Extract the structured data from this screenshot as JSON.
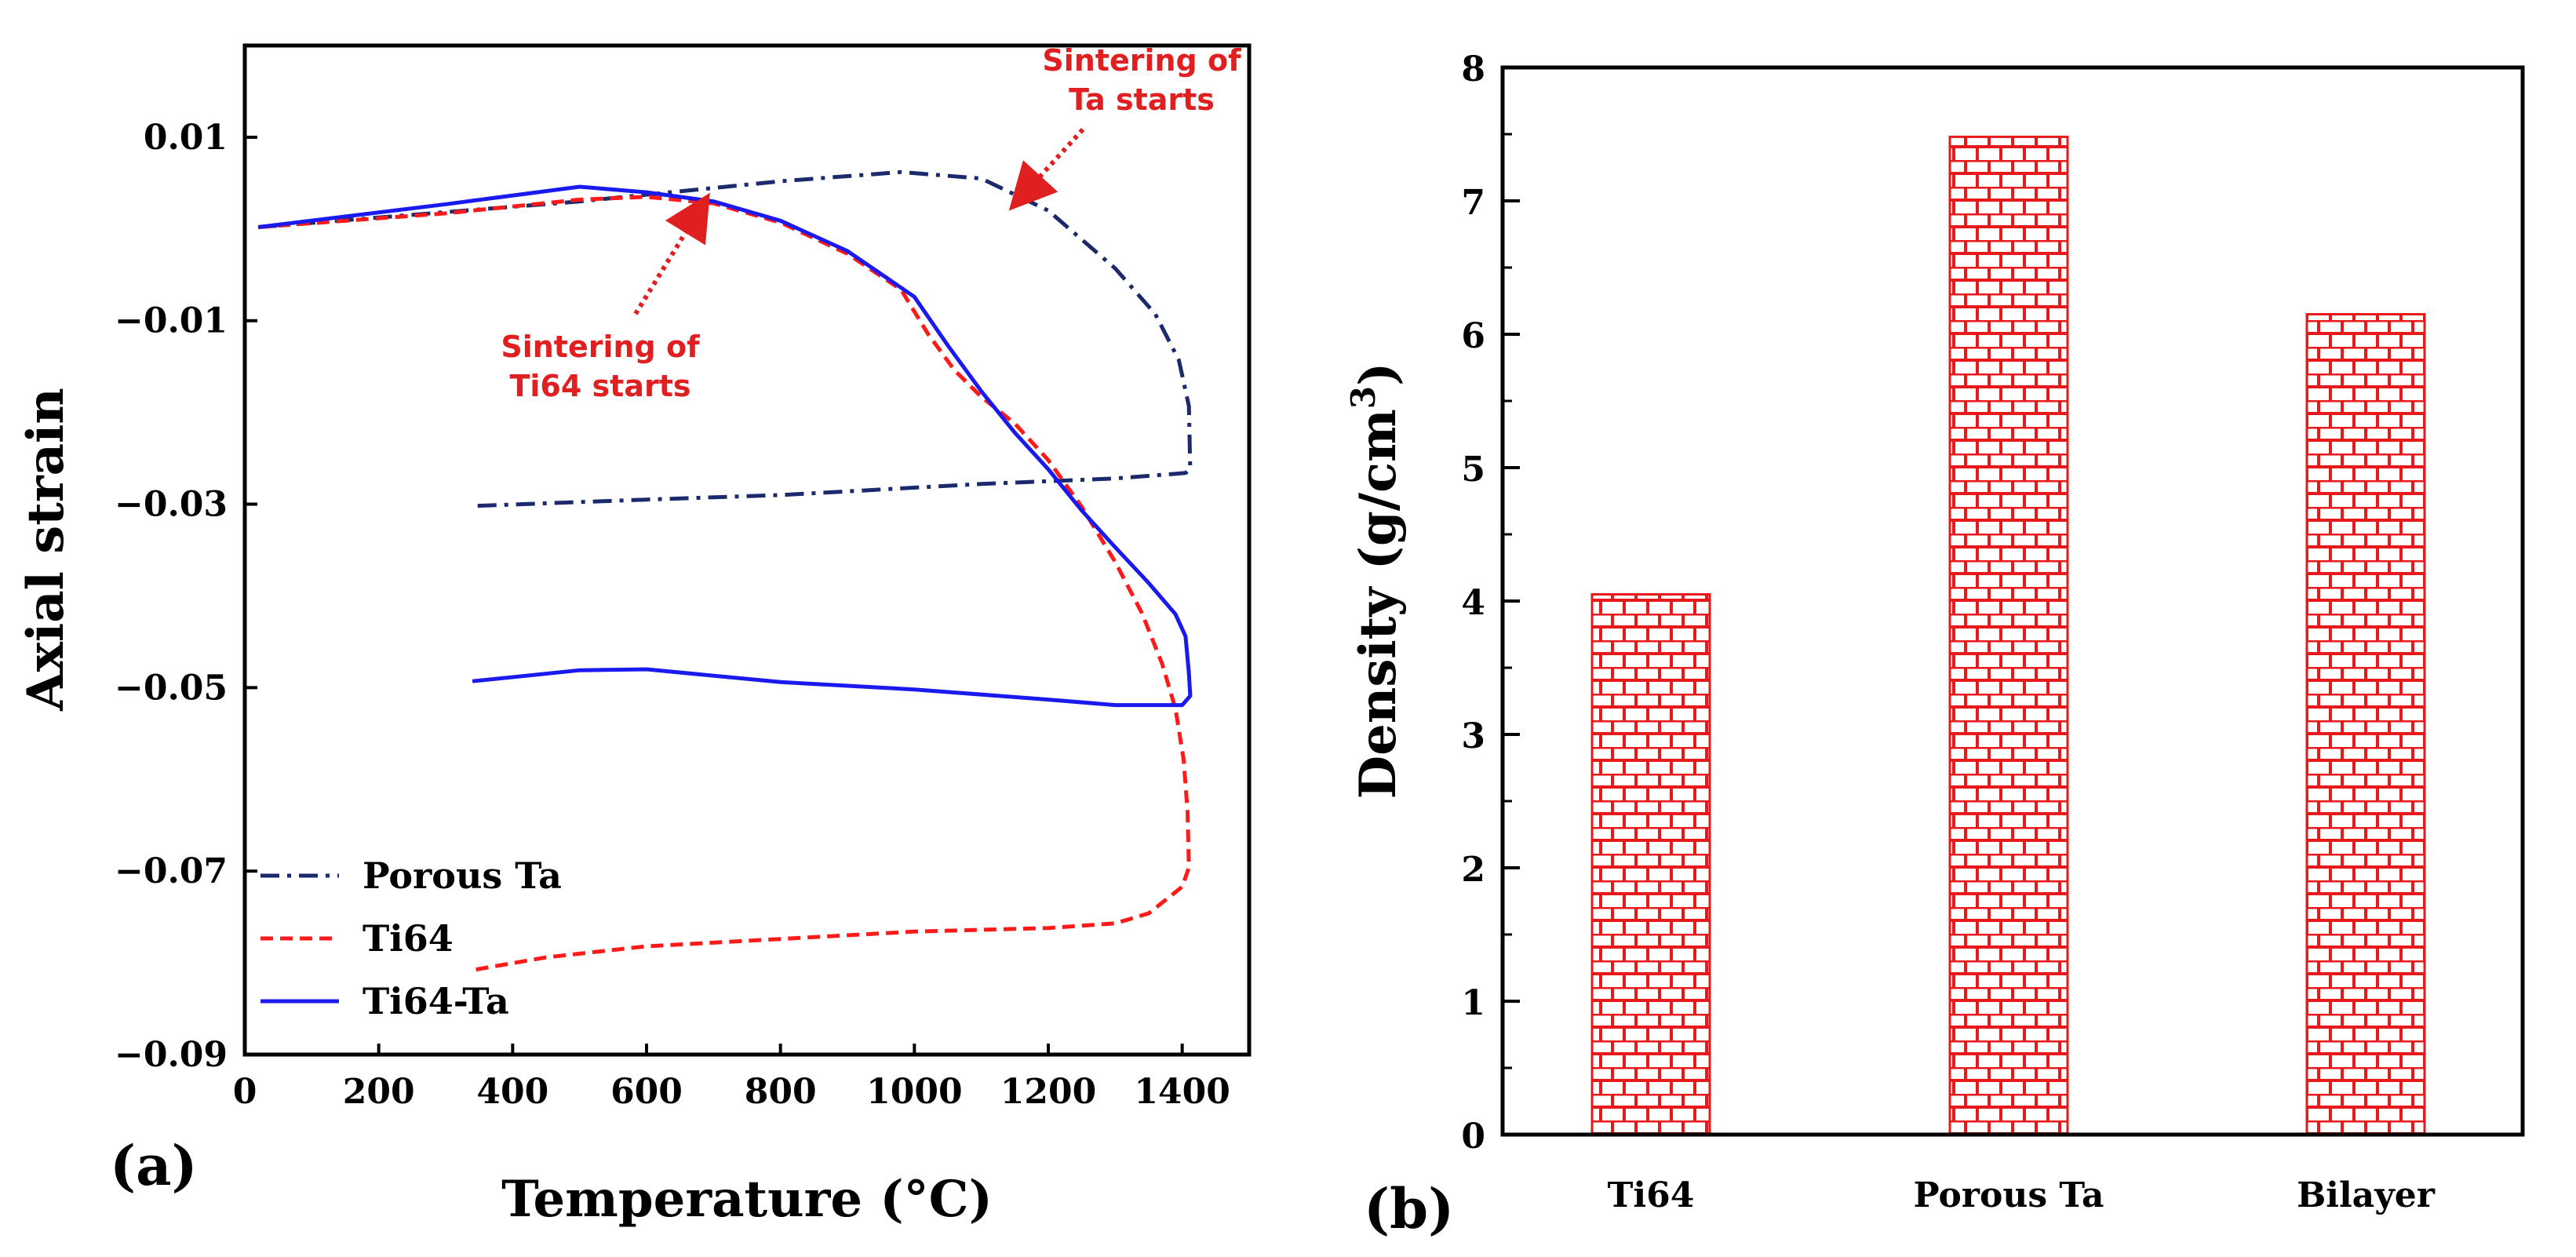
{
  "colors": {
    "ta": "#1a2a6c",
    "ti64": "#ff1a1a",
    "ti64ta": "#1a1aee",
    "annot": "#e02020",
    "bar": "#e8191b"
  },
  "chart_data": [
    {
      "type": "line",
      "panel_label": "(a)",
      "xlabel": "Temperature (°C)",
      "ylabel": "Axial strain",
      "xlim": [
        0,
        1500
      ],
      "ylim": [
        -0.09,
        0.02
      ],
      "x_ticks": [
        0,
        200,
        400,
        600,
        800,
        1000,
        1200,
        1400
      ],
      "y_ticks": [
        0.01,
        -0.01,
        -0.03,
        -0.05,
        -0.07,
        -0.09
      ],
      "x_tick_labels": [
        "0",
        "200",
        "400",
        "600",
        "800",
        "1000",
        "1200",
        "1400"
      ],
      "y_tick_labels": [
        "0.01",
        "−0.01",
        "−0.03",
        "−0.05",
        "−0.07",
        "−0.09"
      ],
      "grid": false,
      "legend": "bottom-left",
      "series": [
        {
          "name": "Porous Ta",
          "style": "dashdot",
          "color_key": "ta",
          "x": [
            20,
            500,
            800,
            980,
            1100,
            1200,
            1300,
            1360,
            1395,
            1410,
            1412,
            1405,
            1300,
            1100,
            800,
            600,
            340
          ],
          "y": [
            0.0002,
            0.003,
            0.0052,
            0.0062,
            0.0055,
            0.002,
            -0.0043,
            -0.0093,
            -0.0143,
            -0.0193,
            -0.0262,
            -0.0266,
            -0.0272,
            -0.0278,
            -0.029,
            -0.0295,
            -0.0302
          ]
        },
        {
          "name": "Ti64",
          "style": "dashed",
          "color_key": "ti64",
          "x": [
            20,
            300,
            500,
            600,
            700,
            800,
            900,
            980,
            1020,
            1060,
            1100,
            1150,
            1200,
            1250,
            1300,
            1340,
            1370,
            1390,
            1402,
            1408,
            1410,
            1400,
            1350,
            1300,
            1200,
            1000,
            800,
            600,
            450,
            340
          ],
          "y": [
            0.0002,
            0.0017,
            0.0032,
            0.0035,
            0.0028,
            0.0007,
            -0.0027,
            -0.0066,
            -0.0114,
            -0.0154,
            -0.0183,
            -0.0212,
            -0.0252,
            -0.0303,
            -0.0363,
            -0.0419,
            -0.0474,
            -0.0523,
            -0.0578,
            -0.0635,
            -0.0696,
            -0.0717,
            -0.0746,
            -0.0757,
            -0.0762,
            -0.0766,
            -0.0774,
            -0.0782,
            -0.0794,
            -0.0808
          ]
        },
        {
          "name": "Ti64-Ta",
          "style": "solid",
          "color_key": "ti64ta",
          "x": [
            20,
            300,
            500,
            600,
            700,
            800,
            900,
            1000,
            1050,
            1100,
            1150,
            1200,
            1250,
            1300,
            1350,
            1390,
            1405,
            1410,
            1412,
            1400,
            1300,
            1200,
            1000,
            800,
            600,
            500,
            340
          ],
          "y": [
            0.0002,
            0.0027,
            0.0046,
            0.004,
            0.003,
            0.0009,
            -0.0024,
            -0.0074,
            -0.0127,
            -0.0177,
            -0.0222,
            -0.0262,
            -0.0307,
            -0.0347,
            -0.0386,
            -0.042,
            -0.0444,
            -0.0484,
            -0.0509,
            -0.0519,
            -0.0519,
            -0.0513,
            -0.0502,
            -0.0494,
            -0.048,
            -0.0481,
            -0.0493
          ]
        }
      ],
      "annotations": [
        {
          "text_lines": [
            "Sintering of",
            "Ta starts"
          ],
          "points_to": [
            1160,
            0.0035
          ]
        },
        {
          "text_lines": [
            "Sintering of",
            "Ti64 starts"
          ],
          "points_to": [
            680,
            0.0022
          ]
        }
      ]
    },
    {
      "type": "bar",
      "panel_label": "(b)",
      "categories": [
        "Ti64",
        "Porous Ta",
        "Bilayer"
      ],
      "values": [
        4.05,
        7.48,
        6.15
      ],
      "xlabel": "",
      "ylabel_main": "Density (g/cm",
      "ylabel_sup": "3",
      "ylabel_close": ")",
      "ylim": [
        0,
        8
      ],
      "y_ticks": [
        0,
        1,
        2,
        3,
        4,
        5,
        6,
        7,
        8
      ],
      "y_tick_labels": [
        "0",
        "1",
        "2",
        "3",
        "4",
        "5",
        "6",
        "7",
        "8"
      ],
      "pattern": "brick",
      "grid": false
    }
  ]
}
